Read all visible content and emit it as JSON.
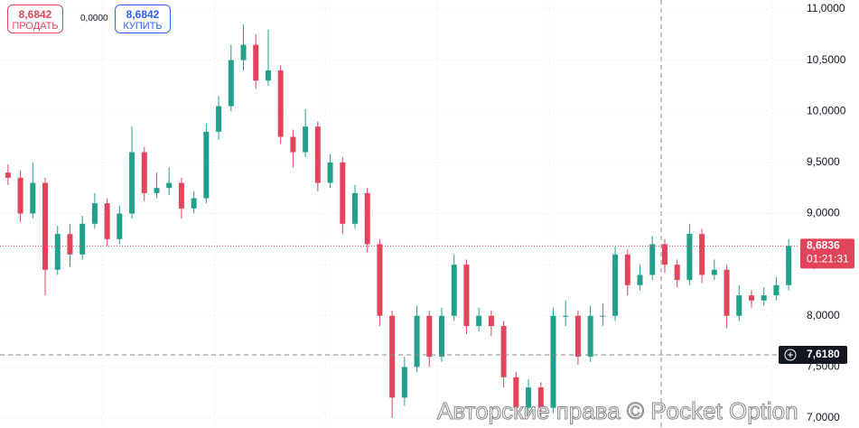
{
  "chart_data": {
    "type": "candlestick",
    "open": [
      9.4,
      9.35,
      9.0,
      9.3,
      8.45,
      8.8,
      8.6,
      8.9,
      9.1,
      8.75,
      9.0,
      9.6,
      9.2,
      9.25,
      9.3,
      9.05,
      9.15,
      9.8,
      10.05,
      10.5,
      10.65,
      10.3,
      10.4,
      9.75,
      9.6,
      9.85,
      9.3,
      9.5,
      8.9,
      9.2,
      8.7,
      8.0,
      7.2,
      7.5,
      8.0,
      7.6,
      8.0,
      8.5,
      7.9,
      8.0,
      7.9,
      7.4,
      7.1,
      7.3,
      7.1,
      8.0,
      8.0,
      7.6,
      8.0,
      8.0,
      8.6,
      8.3,
      8.4,
      8.7,
      8.5,
      8.35,
      8.8,
      8.4,
      8.45,
      8.0,
      8.2,
      8.15,
      8.2,
      8.3
    ],
    "high": [
      9.48,
      9.42,
      9.5,
      9.35,
      8.88,
      8.9,
      8.98,
      9.2,
      9.15,
      9.08,
      9.85,
      9.65,
      9.4,
      9.45,
      9.35,
      9.22,
      9.88,
      10.15,
      10.65,
      10.85,
      10.75,
      10.8,
      10.45,
      9.82,
      10.02,
      9.9,
      9.58,
      9.55,
      9.28,
      9.25,
      8.75,
      8.05,
      7.6,
      8.1,
      8.05,
      8.08,
      8.6,
      8.55,
      8.08,
      8.05,
      7.95,
      7.45,
      7.38,
      7.35,
      8.08,
      8.15,
      8.05,
      8.1,
      8.12,
      8.68,
      8.65,
      8.5,
      8.78,
      8.75,
      8.55,
      8.9,
      8.85,
      8.55,
      8.5,
      8.3,
      8.25,
      8.28,
      8.38,
      8.75
    ],
    "low": [
      9.28,
      8.92,
      8.95,
      8.2,
      8.4,
      8.48,
      8.55,
      8.85,
      8.68,
      8.7,
      8.95,
      9.12,
      9.15,
      9.18,
      8.95,
      9.0,
      9.1,
      9.72,
      10.0,
      10.4,
      10.22,
      10.25,
      9.68,
      9.45,
      9.55,
      9.22,
      9.25,
      8.8,
      8.85,
      8.62,
      7.9,
      7.0,
      7.12,
      7.45,
      7.5,
      7.55,
      7.95,
      7.82,
      7.85,
      7.8,
      7.3,
      7.0,
      7.05,
      7.02,
      7.05,
      7.9,
      7.52,
      7.55,
      7.9,
      7.95,
      8.2,
      8.25,
      8.35,
      8.42,
      8.28,
      8.3,
      8.32,
      8.35,
      7.88,
      7.95,
      8.08,
      8.1,
      8.15,
      8.25
    ],
    "close": [
      9.35,
      9.0,
      9.3,
      8.45,
      8.8,
      8.6,
      8.9,
      9.1,
      8.75,
      9.0,
      9.6,
      9.2,
      9.25,
      9.3,
      9.05,
      9.15,
      9.8,
      10.05,
      10.5,
      10.65,
      10.3,
      10.4,
      9.75,
      9.6,
      9.85,
      9.3,
      9.5,
      8.9,
      9.2,
      8.7,
      8.0,
      7.2,
      7.5,
      8.0,
      7.6,
      8.0,
      8.5,
      7.9,
      8.0,
      7.9,
      7.4,
      7.1,
      7.3,
      7.1,
      8.0,
      8.0,
      7.6,
      8.0,
      8.0,
      8.6,
      8.3,
      8.4,
      8.7,
      8.5,
      8.35,
      8.8,
      8.4,
      8.45,
      8.0,
      8.2,
      8.15,
      8.2,
      8.3,
      8.6836
    ],
    "up_color": "#22a08c",
    "down_color": "#e2455b",
    "ylim": [
      6.903,
      11.088
    ],
    "yticks": [
      {
        "value": 11,
        "label": "11,0000"
      },
      {
        "value": 10.5,
        "label": "10,5000"
      },
      {
        "value": 10,
        "label": "10,0000"
      },
      {
        "value": 9.5,
        "label": "9,5000"
      },
      {
        "value": 9,
        "label": "9,0000"
      },
      {
        "value": 8.5,
        "label": "8,5000"
      },
      {
        "value": 8,
        "label": "8,0000"
      },
      {
        "value": 7.5,
        "label": "7,5000"
      },
      {
        "value": 7,
        "label": "7,0000"
      }
    ],
    "grid": true,
    "current_price": {
      "value": 8.6836,
      "label": "8,6836"
    },
    "timer": "01:21:31",
    "crosshair": {
      "value": 7.618,
      "label": "7,6180"
    }
  },
  "trade_panel": {
    "sell_price": "8,6842",
    "sell_label": "ПРОДАТЬ",
    "spread": "0,0000",
    "buy_price": "8,6842",
    "buy_label": "КУПИТЬ"
  },
  "watermark": "Авторские права © Pocket Option"
}
